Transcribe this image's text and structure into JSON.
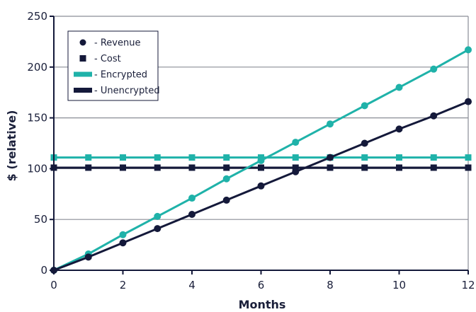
{
  "chart_data": {
    "type": "line",
    "xlabel": "Months",
    "ylabel": "$ (relative)",
    "xlim": [
      0,
      12
    ],
    "ylim": [
      0,
      250
    ],
    "xticks": [
      0,
      2,
      4,
      6,
      8,
      10,
      12
    ],
    "yticks": [
      0,
      50,
      100,
      150,
      200,
      250
    ],
    "grid": "horizontal",
    "legend_position": "top-left",
    "x": [
      0,
      1,
      2,
      3,
      4,
      5,
      6,
      7,
      8,
      9,
      10,
      11,
      12
    ],
    "series": [
      {
        "group": "Revenue",
        "variant": "Encrypted",
        "marker": "circle",
        "color": "#1fb2a9",
        "values": [
          0,
          16,
          35,
          53,
          71,
          90,
          108,
          126,
          144,
          162,
          180,
          198,
          217
        ]
      },
      {
        "group": "Revenue",
        "variant": "Unencrypted",
        "marker": "circle",
        "color": "#14193a",
        "values": [
          0,
          13,
          27,
          41,
          55,
          69,
          83,
          97,
          111,
          125,
          139,
          152,
          166
        ]
      },
      {
        "group": "Cost",
        "variant": "Encrypted",
        "marker": "square",
        "color": "#1fb2a9",
        "values": [
          111,
          111,
          111,
          111,
          111,
          111,
          111,
          111,
          111,
          111,
          111,
          111,
          111
        ]
      },
      {
        "group": "Cost",
        "variant": "Unencrypted",
        "marker": "square",
        "color": "#14193a",
        "values": [
          101,
          101,
          101,
          101,
          101,
          101,
          101,
          101,
          101,
          101,
          101,
          101,
          101
        ]
      }
    ],
    "legend": [
      {
        "label": "- Revenue",
        "symbol": "circle",
        "color": "#14193a"
      },
      {
        "label": "- Cost",
        "symbol": "square",
        "color": "#14193a"
      },
      {
        "label": "- Encrypted",
        "symbol": "line",
        "color": "#1fb2a9"
      },
      {
        "label": "- Unencrypted",
        "symbol": "line",
        "color": "#14193a"
      }
    ]
  }
}
